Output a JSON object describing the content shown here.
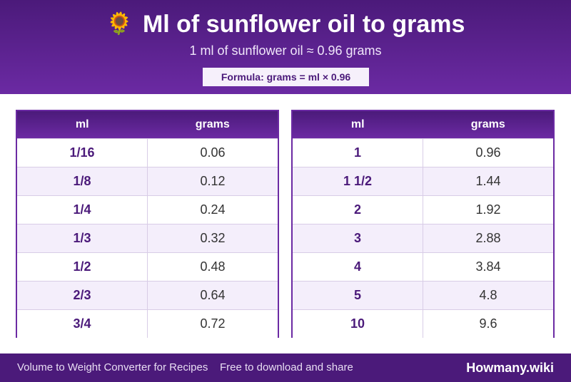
{
  "header": {
    "icon": "sunflower-icon",
    "icon_glyph": "🌻",
    "title": "Ml of sunflower oil to grams",
    "subtitle": "1 ml of sunflower oil ≈ 0.96 grams",
    "formula": "Formula: grams = ml × 0.96"
  },
  "tables": {
    "left": {
      "col_ml": "ml",
      "col_grams": "grams",
      "rows": [
        {
          "ml": "1/16",
          "grams": "0.06"
        },
        {
          "ml": "1/8",
          "grams": "0.12"
        },
        {
          "ml": "1/4",
          "grams": "0.24"
        },
        {
          "ml": "1/3",
          "grams": "0.32"
        },
        {
          "ml": "1/2",
          "grams": "0.48"
        },
        {
          "ml": "2/3",
          "grams": "0.64"
        },
        {
          "ml": "3/4",
          "grams": "0.72"
        }
      ]
    },
    "right": {
      "col_ml": "ml",
      "col_grams": "grams",
      "rows": [
        {
          "ml": "1",
          "grams": "0.96"
        },
        {
          "ml": "1 1/2",
          "grams": "1.44"
        },
        {
          "ml": "2",
          "grams": "1.92"
        },
        {
          "ml": "3",
          "grams": "2.88"
        },
        {
          "ml": "4",
          "grams": "3.84"
        },
        {
          "ml": "5",
          "grams": "4.8"
        },
        {
          "ml": "10",
          "grams": "9.6"
        }
      ]
    }
  },
  "footer": {
    "left": "Volume to Weight Converter for Recipes",
    "middle": "Free to download and share",
    "brand": "Howmany.wiki"
  },
  "colors": {
    "primary": "#4b1a7a",
    "accent": "#6b2aa3",
    "row_alt": "#f4eefb"
  }
}
